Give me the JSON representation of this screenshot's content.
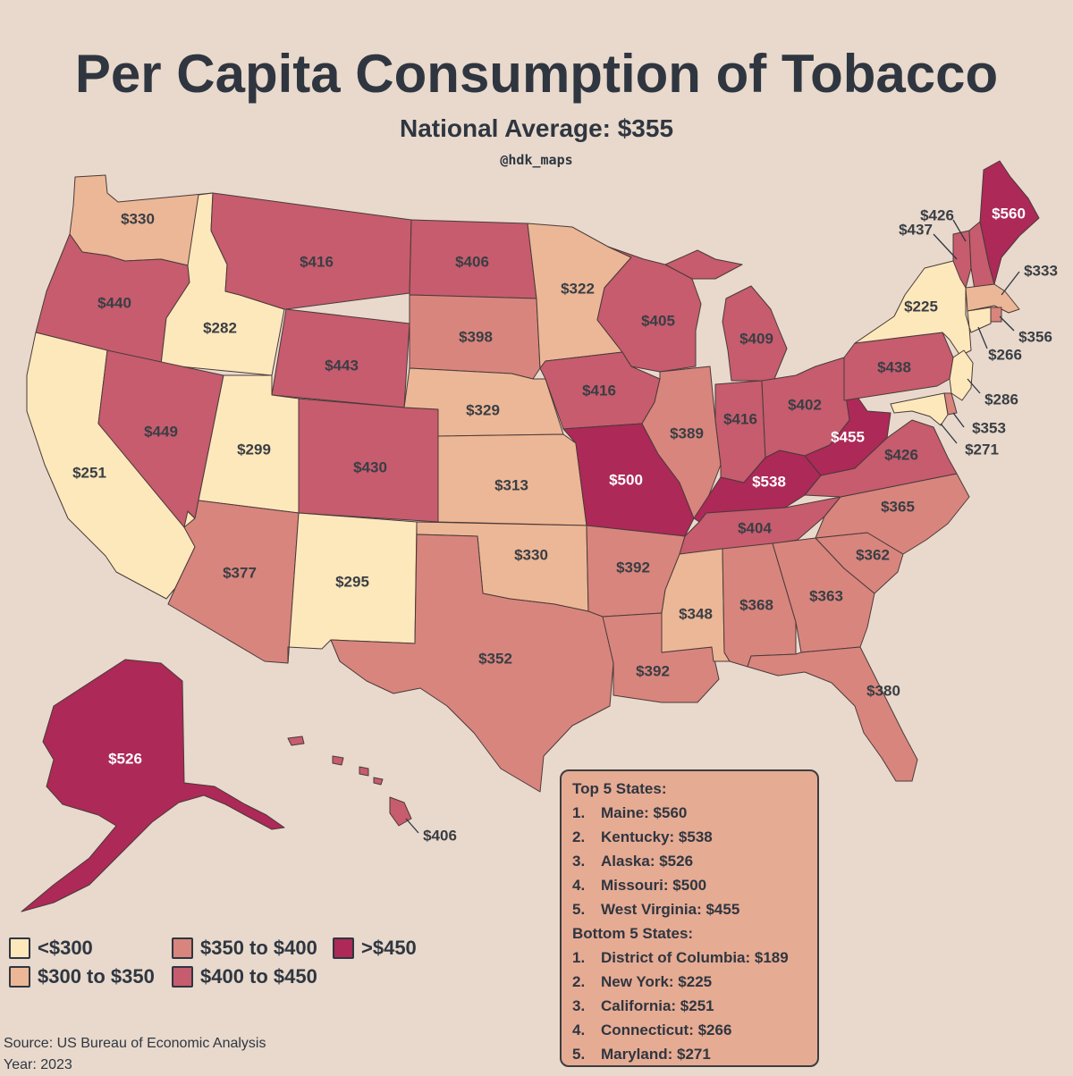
{
  "header": {
    "title": "Per Capita Consumption of Tobacco",
    "subtitle": "National Average: $355",
    "handle": "@hdk_maps"
  },
  "colors": {
    "background": "#e8d9cc",
    "lt300": "#fde8bb",
    "b300_350": "#ecb796",
    "b350_400": "#d8857d",
    "b400_450": "#c65c6e",
    "gt450": "#ad2957"
  },
  "legend": [
    {
      "label": "<$300",
      "color": "#fde8bb"
    },
    {
      "label": "$300 to $350",
      "color": "#ecb796"
    },
    {
      "label": "$350 to $400",
      "color": "#d8857d"
    },
    {
      "label": "$400 to $450",
      "color": "#c65c6e"
    },
    {
      ">": "",
      "label": ">$450",
      "color": "#ad2957"
    }
  ],
  "states": {
    "WA": "$330",
    "OR": "$440",
    "CA": "$251",
    "ID": "$282",
    "NV": "$449",
    "MT": "$416",
    "WY": "$443",
    "UT": "$299",
    "AZ": "$377",
    "CO": "$430",
    "NM": "$295",
    "ND": "$406",
    "SD": "$398",
    "NE": "$329",
    "KS": "$313",
    "OK": "$330",
    "TX": "$352",
    "MN": "$322",
    "IA": "$416",
    "MO": "$500",
    "AR": "$392",
    "LA": "$392",
    "WI": "$405",
    "IL": "$389",
    "MI": "$409",
    "IN": "$416",
    "OH": "$402",
    "KY": "$538",
    "TN": "$404",
    "MS": "$348",
    "AL": "$368",
    "GA": "$363",
    "FL": "$380",
    "SC": "$362",
    "NC": "$365",
    "VA": "$426",
    "WV": "$455",
    "PA": "$438",
    "NY": "$225",
    "ME": "$560",
    "VT": "$437",
    "NH": "$426",
    "MA": "$333",
    "RI": "$356",
    "CT": "$266",
    "NJ": "$286",
    "DE": "$353",
    "MD": "$271",
    "AK": "$526",
    "HI": "$406"
  },
  "rankings": {
    "top_title": "Top 5 States:",
    "top": [
      {
        "rank": "1.",
        "text": "Maine: $560"
      },
      {
        "rank": "2.",
        "text": "Kentucky: $538"
      },
      {
        "rank": "3.",
        "text": "Alaska: $526"
      },
      {
        "rank": "4.",
        "text": "Missouri: $500"
      },
      {
        "rank": "5.",
        "text": "West Virginia: $455"
      }
    ],
    "bottom_title": "Bottom 5 States:",
    "bottom": [
      {
        "rank": "1.",
        "text": "District of Columbia: $189"
      },
      {
        "rank": "2.",
        "text": "New York: $225"
      },
      {
        "rank": "3.",
        "text": "California: $251"
      },
      {
        "rank": "4.",
        "text": "Connecticut: $266"
      },
      {
        "rank": "5.",
        "text": "Maryland: $271"
      }
    ]
  },
  "footer": {
    "source": "Source: US Bureau of Economic Analysis",
    "year": "Year: 2023"
  }
}
